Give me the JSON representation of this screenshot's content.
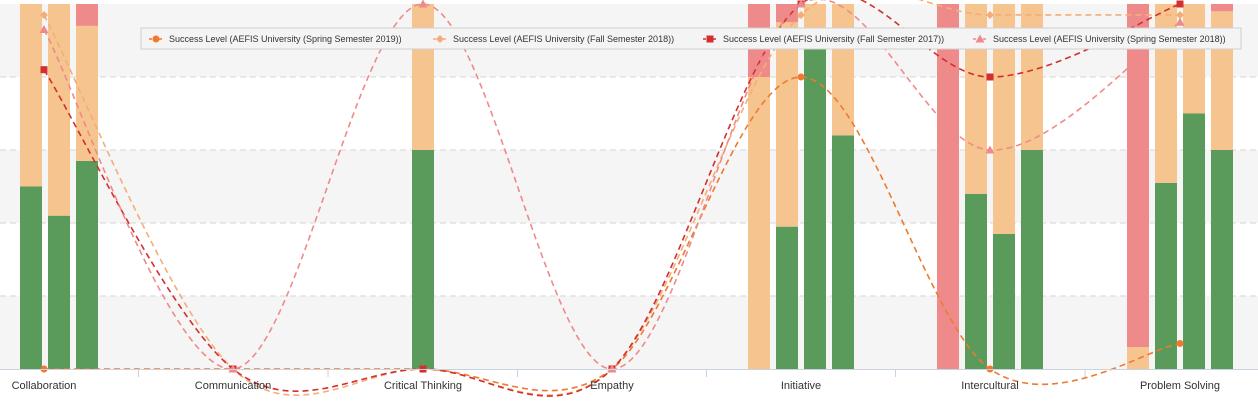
{
  "chart_data": {
    "type": "bar",
    "categories": [
      "Collaboration",
      "Communication",
      "Critical Thinking",
      "Empathy",
      "Initiative",
      "Intercultural",
      "Problem Solving"
    ],
    "ylim": [
      0,
      1
    ],
    "grid": true,
    "legend_position": "top-right",
    "colors": {
      "green": "#5a9a5a",
      "orange": "#f5c48f",
      "red": "#ef8a8a",
      "band": "#f5f5f5",
      "line_spring_2019": "#ee7a30",
      "line_fall_2018": "#f5ad77",
      "line_fall_2017": "#d32f2f",
      "line_spring_2018": "#ef8a8a"
    },
    "bar_stacks": [
      {
        "category": "Collaboration",
        "bars": [
          [
            0.5,
            0.5,
            0.02
          ],
          [
            0.42,
            0.58,
            0.02
          ],
          [
            0.57,
            0.37,
            0.08
          ]
        ]
      },
      {
        "category": "Communication",
        "bars": []
      },
      {
        "category": "Critical Thinking",
        "bars": [
          [
            0.6,
            0.4,
            0.02
          ]
        ]
      },
      {
        "category": "Empathy",
        "bars": []
      },
      {
        "category": "Initiative",
        "bars": [
          [
            0.0,
            0.8,
            0.2
          ],
          [
            0.39,
            0.56,
            0.07
          ],
          [
            0.89,
            0.11,
            0.1
          ],
          [
            0.64,
            0.36,
            0.05
          ]
        ]
      },
      {
        "category": "Intercultural",
        "bars": [
          [
            0.0,
            0.0,
            1.0
          ],
          [
            0.48,
            0.52,
            0.02
          ],
          [
            0.37,
            0.63,
            0.02
          ],
          [
            0.6,
            0.4,
            0.02
          ]
        ]
      },
      {
        "category": "Problem Solving",
        "bars": [
          [
            0.0,
            0.06,
            0.94
          ],
          [
            0.51,
            0.49,
            0.02
          ],
          [
            0.7,
            0.3,
            0.02
          ],
          [
            0.6,
            0.38,
            0.02
          ]
        ]
      }
    ],
    "series": [
      {
        "name": "Success Level (AEFIS University (Spring Semester 2019))",
        "marker": "circle",
        "values": [
          0.0,
          0.0,
          0.0,
          0.0,
          0.8,
          0.0,
          0.07
        ]
      },
      {
        "name": "Success Level (AEFIS University (Fall Semester 2018))",
        "marker": "diamond",
        "values": [
          0.97,
          0.0,
          0.0,
          0.0,
          0.97,
          0.97,
          0.97
        ]
      },
      {
        "name": "Success Level (AEFIS University (Fall Semester 2017))",
        "marker": "square",
        "values": [
          0.82,
          0.0,
          0.0,
          0.0,
          1.0,
          0.8,
          1.0
        ]
      },
      {
        "name": "Success Level (AEFIS University (Spring Semester 2018))",
        "marker": "triangle",
        "values": [
          0.93,
          0.0,
          1.0,
          0.0,
          1.0,
          0.6,
          0.95
        ]
      }
    ]
  }
}
